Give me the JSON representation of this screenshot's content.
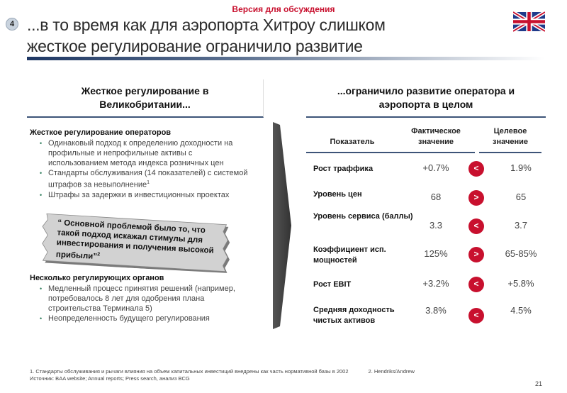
{
  "version_label": "Версия для обсуждения",
  "slide_number": "4",
  "title": [
    "...в то время как для аэропорта Хитроу слишком",
    "жесткое регулирование ограничило развитие"
  ],
  "flag_icon": "uk-flag-icon",
  "left": {
    "header": [
      "Жесткое регулирование в",
      "Великобритании..."
    ],
    "section1": {
      "title": "Жесткое регулирование операторов",
      "bullets": [
        "Одинаковый подход к определению доходности на профильные и непрофильные активы с использованием метода индекса розничных цен",
        "Стандарты обслуживания (14 показателей) с системой штрафов за невыполнение",
        "Штрафы за задержки в инвестиционных проектах"
      ],
      "footnote_ref": "1"
    },
    "quote": {
      "text": "“ Основной проблемой было то, что такой подход искажал стимулы для инвестирования и получения высокой прибыли”",
      "ref": "2"
    },
    "section2": {
      "title": "Несколько регулирующих органов",
      "bullets": [
        "Медленный процесс принятия решений (например, потребовалось 8 лет для одобрения плана строительства Терминала 5)",
        "Неопределенность будущего регулирования"
      ]
    }
  },
  "right": {
    "header": [
      "...ограничило развитие оператора и",
      "аэропорта в целом"
    ],
    "columns": {
      "metric": "Показатель",
      "actual": [
        "Фактическое",
        "значение"
      ],
      "target": [
        "Целевое",
        "значение"
      ]
    },
    "rows": [
      {
        "metric": "Рост траффика",
        "actual": "+0.7%",
        "cmp": "<",
        "target": "1.9%"
      },
      {
        "metric": "Уровень цен",
        "actual": "68",
        "cmp": ">",
        "target": "65"
      },
      {
        "metric": "Уровень сервиса (баллы)",
        "actual": "3.3",
        "cmp": "<",
        "target": "3.7"
      },
      {
        "metric": "Коэффициент исп. мощностей",
        "actual": "125%",
        "cmp": ">",
        "target": "65-85%"
      },
      {
        "metric": "Рост EBIT",
        "actual": "+3.2%",
        "cmp": "<",
        "target": "+5.8%"
      },
      {
        "metric": "Средняя доходность чистых активов",
        "actual": "3.8%",
        "cmp": "<",
        "target": "4.5%"
      }
    ],
    "compare_color": "#c8102e"
  },
  "footnotes": {
    "note1": "1. Стандарты обслуживания и рычаги влияния на объем капитальных инвестиций внедрены как часть нормативной базы в 2002",
    "note2": "2. Hendriks/Andrew",
    "source": "Источник: BAA website; Annual reports; Press search, анализ BCG"
  },
  "page_number": "21"
}
